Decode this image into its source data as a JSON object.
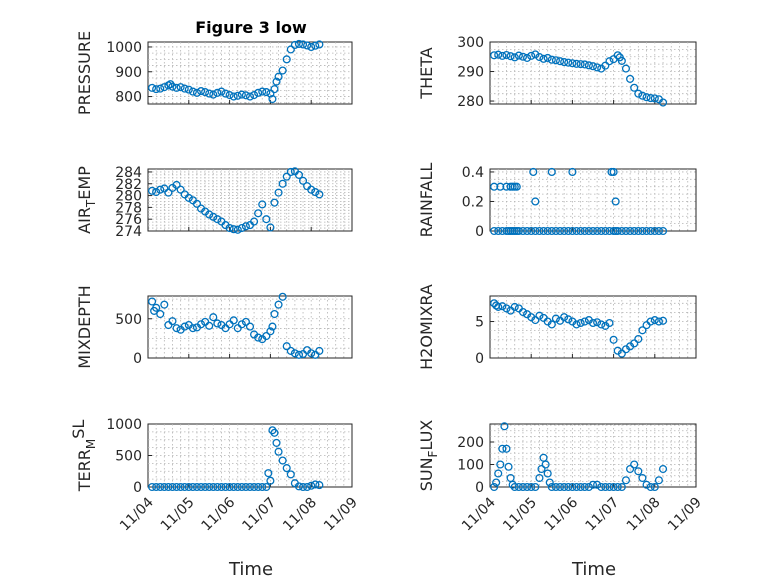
{
  "figure_title": "Figure 3 low",
  "colors": {
    "marker": "#0072BD",
    "axis": "#262626",
    "grid": "#b4b4b4"
  },
  "chart_data": [
    {
      "type": "scatter",
      "title": "Figure 3 low",
      "ylabel": "PRESSURE",
      "ylim": [
        770,
        1020
      ],
      "yticks": [
        "800",
        "900",
        "1000"
      ],
      "xticks": [
        "11/04",
        "11/05",
        "11/06",
        "11/07",
        "11/08",
        "11/09"
      ],
      "xlim": [
        0,
        5
      ],
      "grid": true,
      "series": [
        {
          "x": [
            0.1,
            0.2,
            0.3,
            0.4,
            0.5,
            0.55,
            0.6,
            0.7,
            0.8,
            0.9,
            1.0,
            1.1,
            1.2,
            1.3,
            1.4,
            1.5,
            1.6,
            1.7,
            1.8,
            1.9,
            2.0,
            2.1,
            2.2,
            2.3,
            2.4,
            2.5,
            2.6,
            2.7,
            2.8,
            2.9,
            3.0,
            3.05,
            3.1,
            3.15,
            3.2,
            3.3,
            3.4,
            3.5,
            3.6,
            3.7,
            3.8,
            3.9,
            4.0,
            4.1,
            4.2
          ],
          "y": [
            835,
            830,
            832,
            838,
            845,
            850,
            840,
            835,
            838,
            832,
            828,
            820,
            815,
            822,
            818,
            812,
            808,
            815,
            820,
            812,
            806,
            800,
            803,
            808,
            805,
            800,
            806,
            815,
            820,
            818,
            812,
            790,
            830,
            860,
            880,
            905,
            950,
            990,
            1008,
            1012,
            1010,
            1006,
            1000,
            1005,
            1010
          ]
        }
      ]
    },
    {
      "type": "scatter",
      "ylabel": "THETA",
      "ylim": [
        279,
        300
      ],
      "yticks": [
        "280",
        "290",
        "300"
      ],
      "xticks": [
        "11/04",
        "11/05",
        "11/06",
        "11/07",
        "11/08",
        "11/09"
      ],
      "xlim": [
        0,
        5
      ],
      "grid": true,
      "series": [
        {
          "x": [
            0.1,
            0.2,
            0.3,
            0.4,
            0.5,
            0.6,
            0.7,
            0.8,
            0.9,
            1.0,
            1.1,
            1.2,
            1.3,
            1.4,
            1.5,
            1.6,
            1.7,
            1.8,
            1.9,
            2.0,
            2.1,
            2.2,
            2.3,
            2.4,
            2.5,
            2.6,
            2.7,
            2.8,
            2.9,
            3.0,
            3.1,
            3.15,
            3.2,
            3.3,
            3.4,
            3.5,
            3.6,
            3.7,
            3.8,
            3.9,
            4.0,
            4.1,
            4.2
          ],
          "y": [
            295.5,
            295.7,
            295.3,
            295.6,
            295.2,
            294.8,
            295.4,
            295.0,
            294.6,
            295.3,
            295.8,
            294.9,
            294.3,
            294.6,
            294.0,
            293.8,
            293.5,
            293.2,
            293.0,
            292.8,
            292.6,
            292.5,
            292.4,
            292.1,
            291.8,
            291.4,
            291.0,
            292.0,
            293.5,
            294.2,
            295.5,
            294.8,
            293.6,
            291.0,
            287.5,
            284.5,
            282.5,
            281.8,
            281.3,
            281.0,
            280.9,
            280.6,
            279.5
          ]
        }
      ]
    },
    {
      "type": "scatter",
      "ylabel": "AIR_TEMP",
      "ylim": [
        274,
        284.5
      ],
      "yticks": [
        "274",
        "276",
        "278",
        "280",
        "282",
        "284"
      ],
      "xticks": [
        "11/04",
        "11/05",
        "11/06",
        "11/07",
        "11/08",
        "11/09"
      ],
      "xlim": [
        0,
        5
      ],
      "grid": true,
      "series": [
        {
          "x": [
            0.1,
            0.2,
            0.3,
            0.4,
            0.5,
            0.6,
            0.7,
            0.8,
            0.9,
            1.0,
            1.1,
            1.2,
            1.3,
            1.4,
            1.5,
            1.6,
            1.7,
            1.8,
            1.9,
            2.0,
            2.1,
            2.2,
            2.3,
            2.4,
            2.5,
            2.6,
            2.7,
            2.8,
            2.9,
            3.0,
            3.1,
            3.2,
            3.3,
            3.4,
            3.5,
            3.6,
            3.7,
            3.8,
            3.9,
            4.0,
            4.1,
            4.2
          ],
          "y": [
            280.8,
            280.6,
            281.0,
            281.2,
            280.5,
            281.3,
            281.8,
            281.0,
            280.2,
            279.6,
            279.2,
            278.6,
            277.8,
            277.3,
            276.8,
            276.4,
            276.0,
            275.6,
            275.0,
            274.5,
            274.3,
            274.2,
            274.5,
            274.8,
            275.0,
            275.6,
            277.0,
            278.5,
            276.0,
            274.6,
            278.8,
            280.5,
            282.0,
            283.2,
            284.0,
            284.1,
            283.5,
            282.5,
            281.6,
            281.0,
            280.6,
            280.2
          ]
        }
      ]
    },
    {
      "type": "scatter",
      "ylabel": "RAINFALL",
      "ylim": [
        0,
        0.42
      ],
      "yticks": [
        "0",
        "0.2",
        "0.4"
      ],
      "xticks": [
        "11/04",
        "11/05",
        "11/06",
        "11/07",
        "11/08",
        "11/09"
      ],
      "xlim": [
        0,
        5
      ],
      "grid": true,
      "series": [
        {
          "x": [
            0.1,
            0.2,
            0.3,
            0.4,
            0.45,
            0.5,
            0.55,
            0.6,
            0.65,
            0.7,
            0.8,
            0.9,
            1.0,
            1.1,
            1.2,
            1.3,
            1.4,
            1.5,
            1.6,
            1.7,
            1.8,
            1.9,
            2.0,
            2.1,
            2.2,
            2.3,
            2.4,
            2.5,
            2.6,
            2.7,
            2.8,
            2.9,
            3.0,
            3.05,
            3.1,
            3.2,
            3.3,
            3.4,
            3.5,
            3.6,
            3.7,
            3.8,
            3.9,
            4.0,
            4.1,
            4.2,
            0.1,
            0.25,
            0.4,
            0.5,
            0.55,
            0.6,
            0.65,
            1.1,
            1.05,
            1.5,
            2.0,
            2.95,
            3.0,
            3.05
          ],
          "y": [
            0,
            0,
            0,
            0,
            0,
            0,
            0,
            0,
            0,
            0,
            0,
            0,
            0,
            0,
            0,
            0,
            0,
            0,
            0,
            0,
            0,
            0,
            0,
            0,
            0,
            0,
            0,
            0,
            0,
            0,
            0,
            0,
            0,
            0,
            0,
            0,
            0,
            0,
            0,
            0,
            0,
            0,
            0,
            0,
            0,
            0,
            0.3,
            0.3,
            0.3,
            0.3,
            0.3,
            0.3,
            0.3,
            0.2,
            0.4,
            0.4,
            0.4,
            0.4,
            0.4,
            0.2
          ]
        }
      ]
    },
    {
      "type": "scatter",
      "ylabel": "MIXDEPTH",
      "ylim": [
        0,
        790
      ],
      "yticks": [
        "0",
        "500"
      ],
      "xticks": [
        "11/04",
        "11/05",
        "11/06",
        "11/07",
        "11/08",
        "11/09"
      ],
      "xlim": [
        0,
        5
      ],
      "grid": true,
      "series": [
        {
          "x": [
            0.1,
            0.15,
            0.2,
            0.3,
            0.4,
            0.5,
            0.6,
            0.7,
            0.8,
            0.9,
            1.0,
            1.1,
            1.2,
            1.3,
            1.4,
            1.5,
            1.6,
            1.7,
            1.8,
            1.9,
            2.0,
            2.1,
            2.2,
            2.3,
            2.4,
            2.5,
            2.6,
            2.7,
            2.8,
            2.9,
            3.0,
            3.05,
            3.1,
            3.2,
            3.3,
            3.4,
            3.5,
            3.6,
            3.7,
            3.8,
            3.9,
            4.0,
            4.1,
            4.2
          ],
          "y": [
            720,
            600,
            640,
            560,
            680,
            420,
            470,
            380,
            360,
            400,
            420,
            380,
            390,
            430,
            460,
            410,
            520,
            440,
            420,
            380,
            430,
            480,
            380,
            430,
            460,
            400,
            300,
            260,
            240,
            280,
            340,
            400,
            560,
            680,
            780,
            150,
            90,
            60,
            40,
            50,
            100,
            60,
            40,
            90
          ]
        }
      ]
    },
    {
      "type": "scatter",
      "ylabel": "H2OMIXRA",
      "ylim": [
        0,
        8.5
      ],
      "yticks": [
        "0",
        "5"
      ],
      "xticks": [
        "11/04",
        "11/05",
        "11/06",
        "11/07",
        "11/08",
        "11/09"
      ],
      "xlim": [
        0,
        5
      ],
      "grid": true,
      "series": [
        {
          "x": [
            0.1,
            0.15,
            0.2,
            0.3,
            0.4,
            0.5,
            0.6,
            0.7,
            0.8,
            0.9,
            1.0,
            1.1,
            1.2,
            1.3,
            1.4,
            1.5,
            1.6,
            1.7,
            1.8,
            1.9,
            2.0,
            2.1,
            2.2,
            2.3,
            2.4,
            2.5,
            2.6,
            2.7,
            2.8,
            2.9,
            3.0,
            3.1,
            3.2,
            3.3,
            3.4,
            3.5,
            3.6,
            3.7,
            3.8,
            3.9,
            4.0,
            4.1,
            4.2
          ],
          "y": [
            7.5,
            7.2,
            7.0,
            7.1,
            6.8,
            6.5,
            7.0,
            6.8,
            6.3,
            6.0,
            5.6,
            5.2,
            5.8,
            5.5,
            5.0,
            4.6,
            5.4,
            5.1,
            5.6,
            5.3,
            5.0,
            4.6,
            4.8,
            5.0,
            5.2,
            4.8,
            4.9,
            4.6,
            4.4,
            4.8,
            2.5,
            1.0,
            0.6,
            1.2,
            1.6,
            2.0,
            2.6,
            3.8,
            4.5,
            5.0,
            5.2,
            5.0,
            5.1
          ]
        }
      ]
    },
    {
      "type": "scatter",
      "ylabel": "TERR_MSL",
      "ylim": [
        0,
        1000
      ],
      "yticks": [
        "0",
        "500",
        "1000"
      ],
      "xticks": [
        "11/04",
        "11/05",
        "11/06",
        "11/07",
        "11/08",
        "11/09"
      ],
      "xlim": [
        0,
        5
      ],
      "grid": true,
      "series": [
        {
          "x": [
            0.1,
            0.2,
            0.3,
            0.4,
            0.5,
            0.6,
            0.7,
            0.8,
            0.9,
            1.0,
            1.1,
            1.2,
            1.3,
            1.4,
            1.5,
            1.6,
            1.7,
            1.8,
            1.9,
            2.0,
            2.1,
            2.2,
            2.3,
            2.4,
            2.5,
            2.6,
            2.7,
            2.8,
            2.9,
            2.95,
            3.0,
            3.05,
            3.1,
            3.15,
            3.2,
            3.3,
            3.4,
            3.5,
            3.6,
            3.7,
            3.8,
            3.9,
            4.0,
            4.1,
            4.2
          ],
          "y": [
            0,
            0,
            0,
            0,
            0,
            0,
            0,
            0,
            0,
            0,
            0,
            0,
            0,
            0,
            0,
            0,
            0,
            0,
            0,
            0,
            0,
            0,
            0,
            0,
            0,
            0,
            0,
            0,
            0,
            220,
            100,
            900,
            860,
            700,
            560,
            420,
            300,
            200,
            60,
            10,
            0,
            0,
            20,
            40,
            30
          ]
        }
      ]
    },
    {
      "type": "scatter",
      "ylabel": "SUN_FLUX",
      "ylim": [
        0,
        280
      ],
      "yticks": [
        "0",
        "100",
        "200"
      ],
      "xticks": [
        "11/04",
        "11/05",
        "11/06",
        "11/07",
        "11/08",
        "11/09"
      ],
      "xlim": [
        0,
        5
      ],
      "grid": true,
      "series": [
        {
          "x": [
            0.1,
            0.15,
            0.2,
            0.25,
            0.3,
            0.35,
            0.4,
            0.45,
            0.5,
            0.55,
            0.6,
            0.7,
            0.8,
            0.9,
            1.0,
            1.1,
            1.2,
            1.25,
            1.3,
            1.35,
            1.4,
            1.45,
            1.5,
            1.6,
            1.7,
            1.8,
            1.9,
            2.0,
            2.1,
            2.2,
            2.3,
            2.4,
            2.5,
            2.6,
            2.7,
            2.8,
            2.9,
            3.0,
            3.1,
            3.2,
            3.3,
            3.4,
            3.5,
            3.6,
            3.7,
            3.8,
            3.9,
            4.0,
            4.1,
            4.2
          ],
          "y": [
            0,
            20,
            60,
            100,
            170,
            270,
            170,
            90,
            40,
            10,
            0,
            0,
            0,
            0,
            0,
            0,
            40,
            80,
            130,
            100,
            60,
            20,
            0,
            0,
            0,
            0,
            0,
            0,
            0,
            0,
            0,
            0,
            10,
            10,
            0,
            0,
            0,
            0,
            0,
            0,
            30,
            80,
            100,
            70,
            40,
            10,
            0,
            0,
            30,
            80
          ]
        }
      ]
    }
  ],
  "ylabel_parts": [
    {
      "base": "PRESSURE",
      "sub": "",
      "tail": "",
      "script": ""
    },
    {
      "base": "THETA",
      "sub": "",
      "tail": "",
      "script": ""
    },
    {
      "base": "AIR",
      "sub": "T",
      "tail": "EMP",
      "script": "sub"
    },
    {
      "base": "RAINFALL",
      "sub": "",
      "tail": "",
      "script": ""
    },
    {
      "base": "MIXDEPTH",
      "sub": "",
      "tail": "",
      "script": ""
    },
    {
      "base": "H2OMIXRA",
      "sub": "",
      "tail": "",
      "script": ""
    },
    {
      "base": "TERR",
      "sub": "M",
      "tail": "SL",
      "script": "subsup"
    },
    {
      "base": "SUN",
      "sub": "F",
      "tail": "LUX",
      "script": "sub"
    }
  ],
  "xlabel": "Time"
}
